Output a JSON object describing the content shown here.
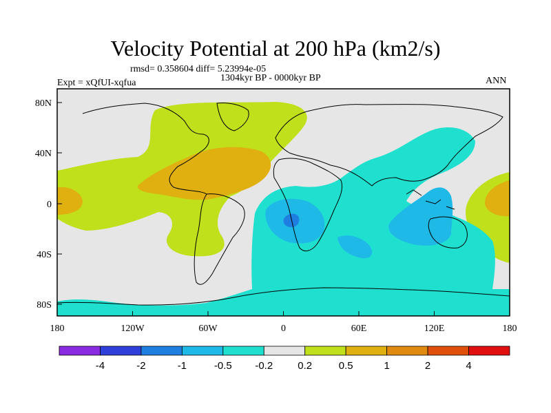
{
  "title": "Velocity Potential at 200 hPa (km2/s)",
  "stats": "rmsd= 0.358604 diff= 5.23994e-05",
  "period": "1304kyr BP - 0000kyr BP",
  "experiment": "Expt = xQfUI-xqfua",
  "season": "ANN",
  "lat_axis": [
    "80N",
    "40N",
    "0",
    "40S",
    "80S"
  ],
  "lon_axis": [
    "180",
    "120W",
    "60W",
    "0",
    "60E",
    "120E",
    "180"
  ],
  "colorbar": {
    "colors": [
      "#8a2be2",
      "#2f3fd9",
      "#1f7fe0",
      "#1fb9e8",
      "#1fe0cf",
      "#e6e6e6",
      "#bfe01a",
      "#dfb010",
      "#e08a10",
      "#e0500a",
      "#e01010"
    ],
    "labels": [
      "-4",
      "-2",
      "-1",
      "-0.5",
      "-0.2",
      "0.2",
      "0.5",
      "1",
      "2",
      "4"
    ]
  },
  "fields": {
    "positive_weak": "#bfe01a",
    "positive_mid": "#dfb010",
    "negative_weak": "#1fe0cf",
    "negative_mid": "#1fb9e8",
    "negative_strong": "#1f7fe0",
    "neutral": "#e6e6e6"
  }
}
